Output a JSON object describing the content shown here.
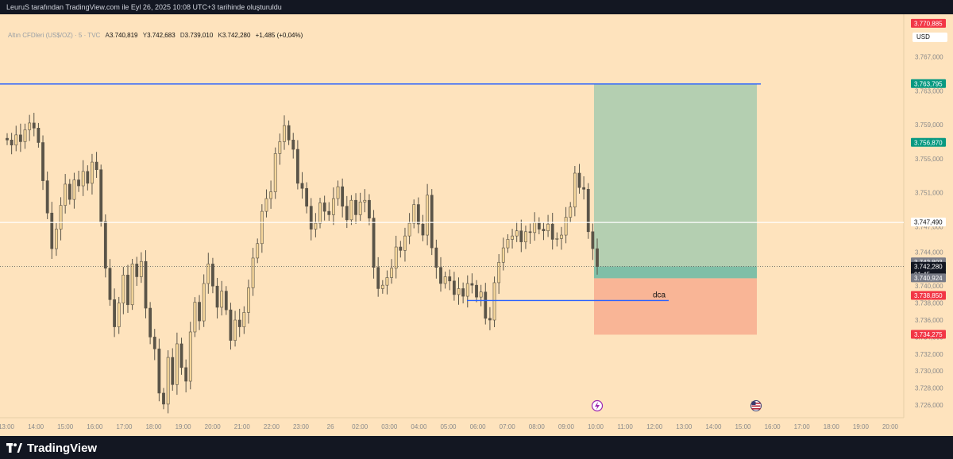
{
  "header": {
    "caption": "LeuruS tarafından TradingView.com ile Eyl 26, 2025 10:08 UTC+3 tarihinde oluşturuldu"
  },
  "legend": {
    "symbol": "Altın CFDleri (US$/OZ) · 5 · TVC",
    "o_key": "A",
    "o_val": "3.740,819",
    "h_key": "Y",
    "h_val": "3.742,683",
    "l_key": "D",
    "l_val": "3.739,010",
    "c_key": "K",
    "c_val": "3.742,280",
    "change": "+1,485 (+0,04%)"
  },
  "currency_button": "USD",
  "footer": {
    "brand": "TradingView"
  },
  "colors": {
    "background": "#fee3bd",
    "candle": "#5a5448",
    "blue_line": "#2962ff",
    "profit_zone": "#b4cfb1",
    "loss_zone": "#f9b596",
    "entry_band": "#7fbfa7",
    "red_label": "#f23645",
    "green_label": "#089981",
    "gray_label": "#787b86"
  },
  "chart_data": {
    "type": "candlestick",
    "instrument": "Altın CFDleri (US$/OZ)",
    "timeframe": "5",
    "ylim": [
      3724.5,
      3772.0
    ],
    "y_ticks": [
      "3.726,000",
      "3.728,000",
      "3.730,000",
      "3.732,000",
      "3.734,000",
      "3.736,000",
      "3.738,000",
      "3.740,000",
      "3.744,000",
      "3.747,000",
      "3.751,000",
      "3.755,000",
      "3.759,000",
      "3.763,000",
      "3.767,000"
    ],
    "x_ticks": [
      "13:00",
      "14:00",
      "15:00",
      "16:00",
      "17:00",
      "18:00",
      "19:00",
      "20:00",
      "21:00",
      "22:00",
      "23:00",
      "26",
      "02:00",
      "03:00",
      "04:00",
      "05:00",
      "06:00",
      "07:00",
      "08:00",
      "09:00",
      "10:00",
      "11:00",
      "12:00",
      "13:00",
      "14:00",
      "15:00",
      "16:00",
      "17:00",
      "18:00",
      "19:00",
      "20:00"
    ],
    "closes": [
      3757.2,
      3756.6,
      3757.8,
      3757.0,
      3758.4,
      3759.2,
      3758.6,
      3756.9,
      3752.4,
      3748.6,
      3744.4,
      3746.7,
      3749.5,
      3752.0,
      3750.2,
      3752.5,
      3751.8,
      3753.5,
      3752.1,
      3754.6,
      3753.7,
      3747.6,
      3742.1,
      3738.4,
      3735.2,
      3738.0,
      3741.3,
      3737.8,
      3742.6,
      3741.1,
      3742.9,
      3737.4,
      3734.0,
      3732.6,
      3727.4,
      3726.1,
      3731.6,
      3728.4,
      3733.2,
      3730.4,
      3728.8,
      3734.6,
      3738.1,
      3735.9,
      3740.3,
      3742.6,
      3740.0,
      3737.5,
      3739.4,
      3737.2,
      3733.6,
      3736.0,
      3735.2,
      3736.9,
      3739.8,
      3743.3,
      3745.0,
      3748.8,
      3750.3,
      3751.1,
      3755.6,
      3757.0,
      3758.9,
      3757.2,
      3756.1,
      3752.1,
      3751.5,
      3749.4,
      3746.7,
      3747.4,
      3749.8,
      3748.8,
      3748.4,
      3750.3,
      3751.7,
      3749.4,
      3747.8,
      3750.1,
      3748.4,
      3749.9,
      3750.1,
      3748.0,
      3742.2,
      3739.7,
      3740.1,
      3741.0,
      3742.1,
      3744.6,
      3744.2,
      3745.9,
      3747.4,
      3749.6,
      3747.3,
      3746.0,
      3750.7,
      3744.5,
      3742.2,
      3740.3,
      3741.1,
      3740.6,
      3739.0,
      3739.7,
      3738.8,
      3740.3,
      3740.1,
      3738.7,
      3739.3,
      3736.2,
      3736.0,
      3740.4,
      3742.8,
      3744.5,
      3745.5,
      3745.9,
      3746.5,
      3745.2,
      3746.4,
      3746.3,
      3747.5,
      3746.7,
      3746.5,
      3747.3,
      3745.5,
      3745.6,
      3746.0,
      3748.1,
      3749.3,
      3753.3,
      3751.6,
      3751.4,
      3746.4,
      3744.4,
      3742.3
    ],
    "horizontal_levels": [
      {
        "label": "3.747,490",
        "value": 3747.49
      },
      {
        "label": "3.763,795",
        "value": 3763.795
      },
      {
        "label": "dca",
        "value": 3738.3
      }
    ],
    "position_tool": {
      "entry": "3.740,924",
      "target": "3.763,795",
      "stop": "3.734,275",
      "target_label": "3.756,870",
      "stop_label": "3.738,850"
    },
    "price_labels": [
      {
        "text": "3.770,885",
        "value": 3770.885,
        "kind": "red"
      },
      {
        "text": "3.763,795",
        "value": 3763.795,
        "kind": "green"
      },
      {
        "text": "3.756,870",
        "value": 3756.87,
        "kind": "green"
      },
      {
        "text": "3.747,490",
        "value": 3747.49,
        "kind": "white"
      },
      {
        "text": "3.742,803",
        "value": 3742.803,
        "kind": "gray"
      },
      {
        "text": "3.742,280",
        "value": 3742.28,
        "kind": "black"
      },
      {
        "text": "01:45",
        "value": 3742.28,
        "kind": "countdown"
      },
      {
        "text": "3.740,924",
        "value": 3740.924,
        "kind": "gray"
      },
      {
        "text": "3.738,850",
        "value": 3738.85,
        "kind": "red"
      },
      {
        "text": "3.734,275",
        "value": 3734.275,
        "kind": "red"
      }
    ]
  }
}
